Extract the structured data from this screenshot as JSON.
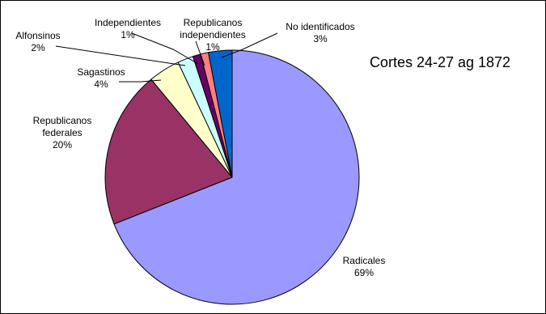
{
  "chart_data": {
    "type": "pie",
    "title": "Cortes 24-27 ag 1872",
    "start_angle_deg": 0,
    "direction": "clockwise",
    "slices": [
      {
        "label": [
          "Radicales"
        ],
        "value": 69,
        "pct_text": "69%",
        "color": "#9999ff"
      },
      {
        "label": [
          "Republicanos",
          "federales"
        ],
        "value": 20,
        "pct_text": "20%",
        "color": "#993366"
      },
      {
        "label": [
          "Sagastinos"
        ],
        "value": 4,
        "pct_text": "4%",
        "color": "#ffffcc"
      },
      {
        "label": [
          "Alfonsinos"
        ],
        "value": 2,
        "pct_text": "2%",
        "color": "#ccffff"
      },
      {
        "label": [
          "Independientes"
        ],
        "value": 1,
        "pct_text": "1%",
        "color": "#660066"
      },
      {
        "label": [
          "Republicanos",
          "independientes"
        ],
        "value": 1,
        "pct_text": "1%",
        "color": "#ff8080"
      },
      {
        "label": [
          "No identificados"
        ],
        "value": 3,
        "pct_text": "3%",
        "color": "#0066cc"
      }
    ]
  }
}
